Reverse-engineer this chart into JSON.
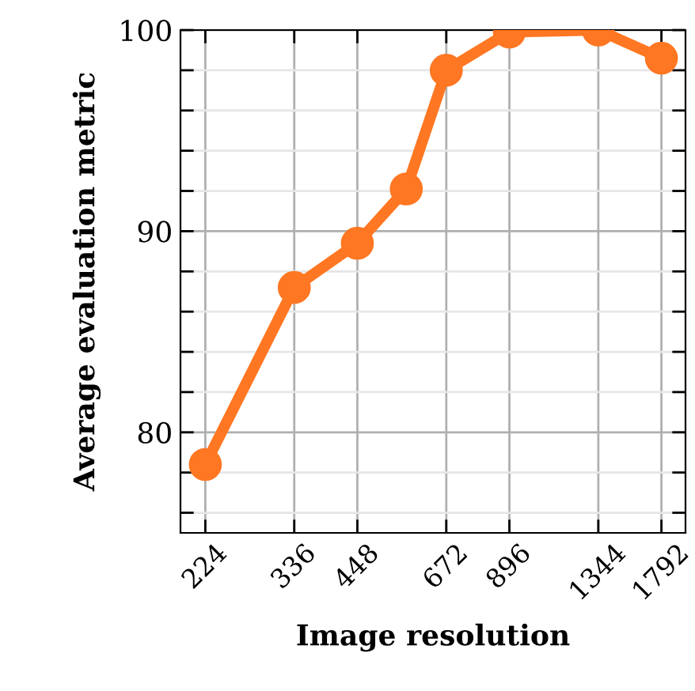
{
  "chart_data": {
    "type": "line",
    "xlabel": "Image resolution",
    "ylabel": "Average evaluation metric",
    "log": "x",
    "x": [
      224,
      336,
      448,
      560,
      672,
      896,
      1344,
      1792
    ],
    "series": [
      {
        "color": "#ff7722",
        "values": [
          78.4,
          87.2,
          89.4,
          92.1,
          98.0,
          99.9,
          100.0,
          98.6
        ]
      }
    ],
    "xlim": [
      200,
      2000
    ],
    "xticks": [
      224,
      336,
      448,
      672,
      896,
      1344,
      1792
    ],
    "ylim": [
      75,
      100
    ],
    "yticks": [
      {
        "value": 76,
        "label": null
      },
      {
        "value": 78,
        "label": null
      },
      80,
      {
        "value": 82,
        "label": null
      },
      {
        "value": 84,
        "label": null
      },
      {
        "value": 86,
        "label": null
      },
      {
        "value": 88,
        "label": null
      },
      90,
      {
        "value": 92,
        "label": null
      },
      {
        "value": 94,
        "label": null
      },
      {
        "value": 96,
        "label": null
      },
      {
        "value": 98,
        "label": null
      },
      100
    ],
    "grid": true,
    "marker": "circle",
    "line_style": "solid"
  }
}
